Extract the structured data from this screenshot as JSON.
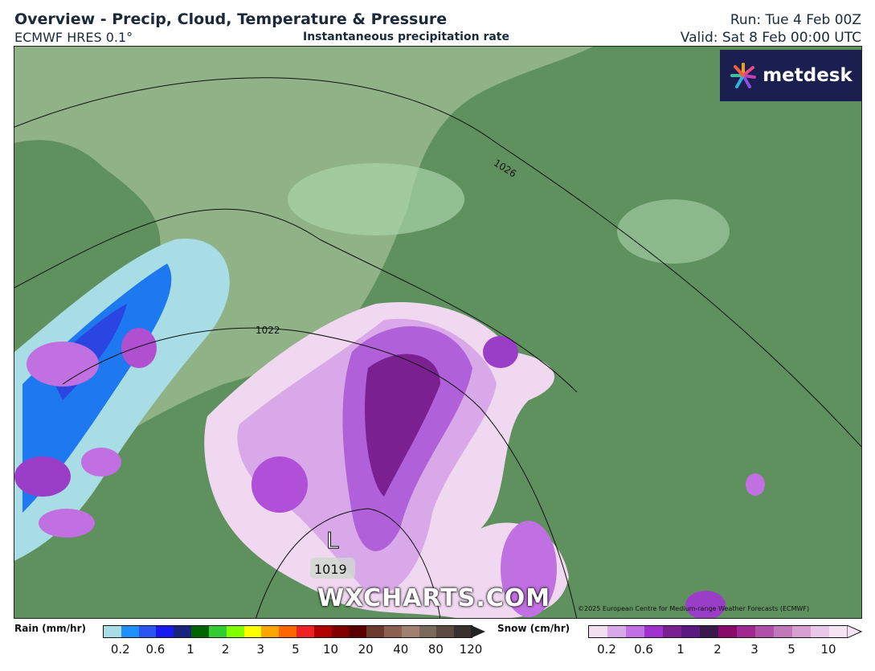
{
  "header": {
    "title": "Overview - Precip, Cloud, Temperature & Pressure",
    "model": "ECMWF HRES 0.1°",
    "subtitle": "Instantaneous precipitation rate",
    "run": "Run: Tue 4 Feb 00Z",
    "valid": "Valid: Sat 8 Feb 00:00 UTC"
  },
  "logo": {
    "text": "metdesk"
  },
  "map": {
    "isobars": [
      "1026",
      "1022"
    ],
    "low": {
      "symbol": "L",
      "pressure": "1019"
    },
    "watermark": "WXCHARTS.COM",
    "copyright": "©2025 European Centre for Medium-range Weather Forecasts (ECMWF)",
    "colors": {
      "land": "#5f915f",
      "sea": "#8fb386",
      "snow": "#9a3ec8",
      "rain": "#1e78f0"
    }
  },
  "legend": {
    "rain": {
      "label": "Rain (mm/hr)",
      "ticks": [
        "0.2",
        "0.6",
        "1",
        "2",
        "3",
        "5",
        "10",
        "20",
        "40",
        "80",
        "120"
      ],
      "colors": [
        "#a8dde6",
        "#1e90ff",
        "#2a55f0",
        "#1a1aee",
        "#1a237e",
        "#006400",
        "#32cd32",
        "#7fff00",
        "#ffff00",
        "#ffa500",
        "#ff6600",
        "#ee2222",
        "#b00000",
        "#800000",
        "#5a0000",
        "#6b3a2e",
        "#8b6050",
        "#a08070",
        "#7a6a5a",
        "#5a4a40",
        "#3a3030"
      ]
    },
    "snow": {
      "label": "Snow (cm/hr)",
      "ticks": [
        "0.2",
        "0.6",
        "1",
        "2",
        "3",
        "5",
        "10"
      ],
      "colors": [
        "#f0e0f0",
        "#d8a8e8",
        "#c070e0",
        "#a030d0",
        "#7a2090",
        "#5a1a80",
        "#3a1a4a",
        "#8a0a6a",
        "#a02890",
        "#b050a8",
        "#c078b8",
        "#d8a0d0",
        "#e8c8e8",
        "#f4e4f4"
      ]
    }
  }
}
